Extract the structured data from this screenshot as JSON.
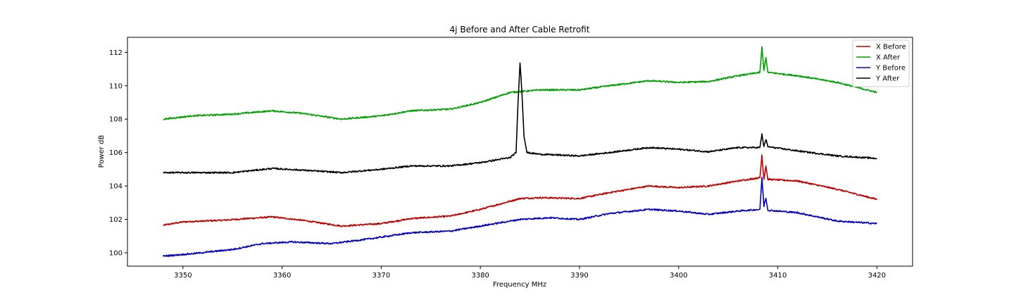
{
  "chart_data": {
    "type": "line",
    "title": "4j Before and After Cable Retrofit",
    "xlabel": "Frequency MHz",
    "ylabel": "Power dB",
    "xlim": [
      3344.4,
      3423.6
    ],
    "ylim": [
      99.2,
      112.9
    ],
    "xticks": [
      3350,
      3360,
      3370,
      3380,
      3390,
      3400,
      3410,
      3420
    ],
    "yticks": [
      100,
      102,
      104,
      106,
      108,
      110,
      112
    ],
    "grid": false,
    "legend_position": "top-right",
    "series": [
      {
        "name": "X Before",
        "color": "#c00000",
        "x": [
          3348,
          3350,
          3354,
          3359,
          3362,
          3366,
          3370,
          3373,
          3377,
          3380,
          3384,
          3386,
          3390,
          3393,
          3397,
          3400,
          3403,
          3406,
          3408.2,
          3408.4,
          3408.6,
          3408.8,
          3409,
          3412,
          3416,
          3420
        ],
        "values": [
          101.65,
          101.85,
          101.95,
          102.15,
          101.95,
          101.6,
          101.75,
          102.05,
          102.2,
          102.6,
          103.25,
          103.3,
          103.25,
          103.6,
          104.0,
          103.9,
          104.0,
          104.3,
          104.5,
          105.85,
          104.4,
          105.2,
          104.4,
          104.3,
          103.8,
          103.2
        ]
      },
      {
        "name": "X After",
        "color": "#00a000",
        "x": [
          3348,
          3351,
          3355,
          3359,
          3362,
          3366,
          3370,
          3373,
          3377,
          3380,
          3383,
          3386,
          3390,
          3393,
          3397,
          3400,
          3403,
          3406,
          3408.2,
          3408.4,
          3408.6,
          3408.8,
          3409,
          3412,
          3416,
          3420
        ],
        "values": [
          108.0,
          108.2,
          108.3,
          108.5,
          108.35,
          108.0,
          108.2,
          108.5,
          108.6,
          109.0,
          109.6,
          109.75,
          109.75,
          110.0,
          110.3,
          110.2,
          110.25,
          110.6,
          110.8,
          112.3,
          110.9,
          111.7,
          110.8,
          110.6,
          110.2,
          109.6
        ]
      },
      {
        "name": "Y Before",
        "color": "#0000c0",
        "x": [
          3348,
          3351,
          3355,
          3358,
          3361,
          3365,
          3369,
          3373,
          3377,
          3380,
          3384,
          3387,
          3390,
          3393,
          3397,
          3400,
          3403,
          3406,
          3408.2,
          3408.4,
          3408.6,
          3408.8,
          3409,
          3412,
          3416,
          3420
        ],
        "values": [
          99.8,
          99.95,
          100.2,
          100.55,
          100.65,
          100.55,
          100.85,
          101.2,
          101.3,
          101.6,
          102.0,
          102.1,
          102.0,
          102.35,
          102.6,
          102.5,
          102.3,
          102.5,
          102.6,
          104.5,
          102.8,
          103.3,
          102.55,
          102.4,
          101.9,
          101.75
        ]
      },
      {
        "name": "Y After",
        "color": "#000000",
        "x": [
          3348,
          3351,
          3355,
          3359,
          3362,
          3366,
          3370,
          3373,
          3377,
          3380,
          3383,
          3383.6,
          3383.8,
          3384,
          3384.2,
          3384.4,
          3384.7,
          3386,
          3390,
          3393,
          3397,
          3400,
          3403,
          3406,
          3408.2,
          3408.4,
          3408.6,
          3408.8,
          3409,
          3412,
          3416,
          3420
        ],
        "values": [
          104.8,
          104.8,
          104.8,
          105.05,
          104.95,
          104.8,
          105.0,
          105.2,
          105.2,
          105.4,
          105.7,
          106.0,
          109.0,
          111.4,
          109.5,
          107.0,
          106.0,
          105.9,
          105.8,
          106.0,
          106.3,
          106.2,
          106.05,
          106.3,
          106.3,
          107.1,
          106.35,
          106.8,
          106.35,
          106.1,
          105.8,
          105.65
        ]
      }
    ]
  }
}
